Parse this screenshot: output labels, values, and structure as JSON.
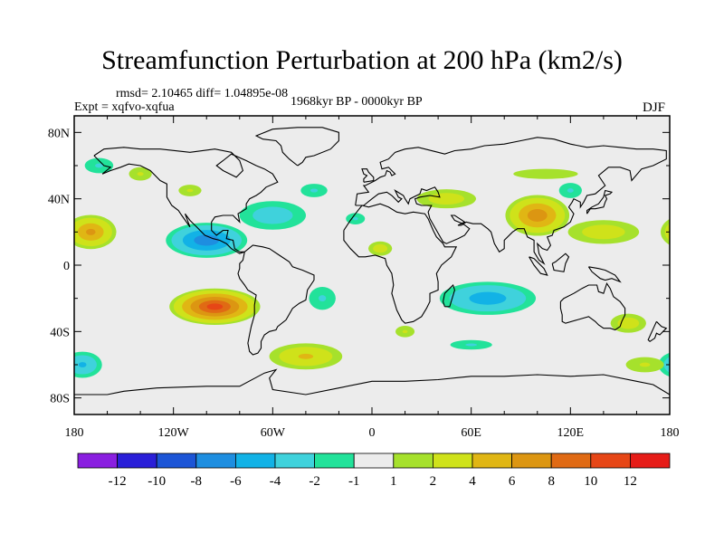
{
  "header": {
    "title": "Streamfunction Perturbation at 200 hPa (km2/s)",
    "stats": "rmsd= 2.10465 diff= 1.04895e-08",
    "experiment": "Expt = xqfvo-xqfua",
    "period": "1968kyr BP - 0000kyr BP",
    "season": "DJF"
  },
  "chart_data": {
    "type": "heatmap",
    "title": "Streamfunction Perturbation at 200 hPa (km2/s)",
    "xlabel": "",
    "ylabel": "",
    "xlim": [
      -180,
      180
    ],
    "ylim": [
      -90,
      90
    ],
    "x_ticks": [
      {
        "value": -180,
        "label": "180"
      },
      {
        "value": -120,
        "label": "120W"
      },
      {
        "value": -60,
        "label": "60W"
      },
      {
        "value": 0,
        "label": "0"
      },
      {
        "value": 60,
        "label": "60E"
      },
      {
        "value": 120,
        "label": "120E"
      },
      {
        "value": 180,
        "label": "180"
      }
    ],
    "y_ticks": [
      {
        "value": 80,
        "label": "80N"
      },
      {
        "value": 40,
        "label": "40N"
      },
      {
        "value": 0,
        "label": "0"
      },
      {
        "value": -40,
        "label": "40S"
      },
      {
        "value": -80,
        "label": "80S"
      }
    ],
    "colorbar": {
      "colors": [
        "#8a1fe0",
        "#2a1fd8",
        "#1c55d6",
        "#1e8ee0",
        "#12b2e6",
        "#3fd2dc",
        "#22e29a",
        "#ececec",
        "#a6e12c",
        "#cfe21a",
        "#e0b614",
        "#dc9612",
        "#e06a14",
        "#e64616",
        "#e61c18"
      ],
      "labels": [
        "-12",
        "-10",
        "-8",
        "-6",
        "-4",
        "-2",
        "-1",
        "1",
        "2",
        "4",
        "6",
        "8",
        "10",
        "12"
      ]
    },
    "anomaly_centers": [
      {
        "lon": -95,
        "lat": -25,
        "value": 10,
        "rx": 30,
        "ry": 12
      },
      {
        "lon": -100,
        "lat": 15,
        "value": -7,
        "rx": 28,
        "ry": 12
      },
      {
        "lon": -170,
        "lat": 20,
        "value": 6,
        "rx": 18,
        "ry": 12
      },
      {
        "lon": -60,
        "lat": 30,
        "value": -3,
        "rx": 28,
        "ry": 12
      },
      {
        "lon": -140,
        "lat": 55,
        "value": 2,
        "rx": 12,
        "ry": 7
      },
      {
        "lon": -110,
        "lat": 45,
        "value": 2,
        "rx": 12,
        "ry": 6
      },
      {
        "lon": -35,
        "lat": 45,
        "value": -2,
        "rx": 14,
        "ry": 7
      },
      {
        "lon": -10,
        "lat": 28,
        "value": -2,
        "rx": 10,
        "ry": 6
      },
      {
        "lon": 5,
        "lat": 10,
        "value": 3,
        "rx": 10,
        "ry": 6
      },
      {
        "lon": 45,
        "lat": 40,
        "value": 3,
        "rx": 25,
        "ry": 8
      },
      {
        "lon": 100,
        "lat": 30,
        "value": 7,
        "rx": 22,
        "ry": 14
      },
      {
        "lon": 140,
        "lat": 20,
        "value": 3,
        "rx": 30,
        "ry": 10
      },
      {
        "lon": 105,
        "lat": 55,
        "value": 1.5,
        "rx": 45,
        "ry": 7
      },
      {
        "lon": 120,
        "lat": 45,
        "value": -2,
        "rx": 12,
        "ry": 8
      },
      {
        "lon": 70,
        "lat": -20,
        "value": -5,
        "rx": 35,
        "ry": 12
      },
      {
        "lon": 20,
        "lat": -40,
        "value": 2,
        "rx": 10,
        "ry": 6
      },
      {
        "lon": 155,
        "lat": -35,
        "value": 3,
        "rx": 15,
        "ry": 8
      },
      {
        "lon": -40,
        "lat": -55,
        "value": 4,
        "rx": 28,
        "ry": 10
      },
      {
        "lon": 60,
        "lat": -48,
        "value": -2,
        "rx": 22,
        "ry": 5
      },
      {
        "lon": -175,
        "lat": -60,
        "value": -4,
        "rx": 15,
        "ry": 10
      },
      {
        "lon": 165,
        "lat": -60,
        "value": 2,
        "rx": 20,
        "ry": 8
      },
      {
        "lon": -165,
        "lat": 60,
        "value": -2,
        "rx": 15,
        "ry": 8
      },
      {
        "lon": -30,
        "lat": -20,
        "value": -2,
        "rx": 14,
        "ry": 12
      }
    ]
  }
}
